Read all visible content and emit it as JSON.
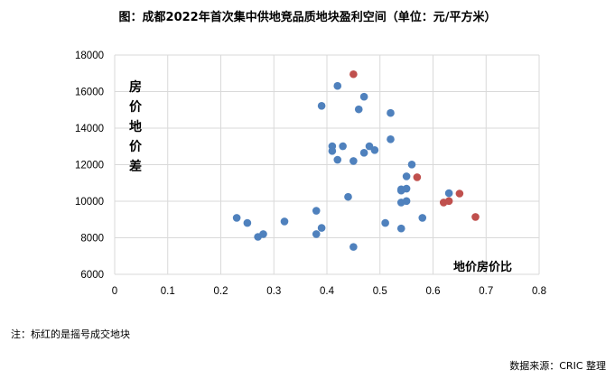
{
  "chart_data": {
    "type": "scatter",
    "title": "图：成都2022年首次集中供地竞品质地块盈利空间（单位：元/平方米）",
    "xlabel": "地价房价比",
    "ylabel": "房价地价差",
    "xlim": [
      0,
      0.8
    ],
    "ylim": [
      6000,
      18000
    ],
    "xticks": [
      "0",
      "0.1",
      "0.2",
      "0.3",
      "0.4",
      "0.5",
      "0.6",
      "0.7",
      "0.8"
    ],
    "yticks": [
      "6000",
      "8000",
      "10000",
      "12000",
      "14000",
      "16000",
      "18000"
    ],
    "grid": true,
    "colors": {
      "normal": "#4f81bd",
      "lottery": "#c0504d"
    },
    "points": [
      {
        "x": 0.45,
        "y": 16950,
        "lottery": true
      },
      {
        "x": 0.42,
        "y": 16310,
        "lottery": false
      },
      {
        "x": 0.47,
        "y": 15720,
        "lottery": false
      },
      {
        "x": 0.39,
        "y": 15220,
        "lottery": false
      },
      {
        "x": 0.46,
        "y": 15030,
        "lottery": false
      },
      {
        "x": 0.52,
        "y": 14830,
        "lottery": false
      },
      {
        "x": 0.52,
        "y": 13390,
        "lottery": false
      },
      {
        "x": 0.41,
        "y": 13010,
        "lottery": false
      },
      {
        "x": 0.41,
        "y": 12750,
        "lottery": false
      },
      {
        "x": 0.43,
        "y": 13010,
        "lottery": false
      },
      {
        "x": 0.48,
        "y": 13010,
        "lottery": false
      },
      {
        "x": 0.49,
        "y": 12800,
        "lottery": false
      },
      {
        "x": 0.47,
        "y": 12650,
        "lottery": false
      },
      {
        "x": 0.42,
        "y": 12270,
        "lottery": false
      },
      {
        "x": 0.45,
        "y": 12200,
        "lottery": false
      },
      {
        "x": 0.56,
        "y": 12010,
        "lottery": false
      },
      {
        "x": 0.55,
        "y": 11360,
        "lottery": false
      },
      {
        "x": 0.57,
        "y": 11310,
        "lottery": true
      },
      {
        "x": 0.54,
        "y": 10580,
        "lottery": false
      },
      {
        "x": 0.54,
        "y": 10650,
        "lottery": false
      },
      {
        "x": 0.55,
        "y": 10690,
        "lottery": false
      },
      {
        "x": 0.44,
        "y": 10240,
        "lottery": false
      },
      {
        "x": 0.63,
        "y": 10440,
        "lottery": false
      },
      {
        "x": 0.65,
        "y": 10420,
        "lottery": true
      },
      {
        "x": 0.54,
        "y": 9930,
        "lottery": false
      },
      {
        "x": 0.55,
        "y": 10010,
        "lottery": false
      },
      {
        "x": 0.62,
        "y": 9930,
        "lottery": true
      },
      {
        "x": 0.63,
        "y": 10010,
        "lottery": true
      },
      {
        "x": 0.23,
        "y": 9090,
        "lottery": false
      },
      {
        "x": 0.25,
        "y": 8810,
        "lottery": false
      },
      {
        "x": 0.32,
        "y": 8890,
        "lottery": false
      },
      {
        "x": 0.38,
        "y": 9480,
        "lottery": false
      },
      {
        "x": 0.39,
        "y": 8540,
        "lottery": false
      },
      {
        "x": 0.38,
        "y": 8200,
        "lottery": false
      },
      {
        "x": 0.27,
        "y": 8050,
        "lottery": false
      },
      {
        "x": 0.28,
        "y": 8200,
        "lottery": false
      },
      {
        "x": 0.51,
        "y": 8810,
        "lottery": false
      },
      {
        "x": 0.54,
        "y": 8510,
        "lottery": false
      },
      {
        "x": 0.58,
        "y": 9090,
        "lottery": false
      },
      {
        "x": 0.68,
        "y": 9140,
        "lottery": true
      },
      {
        "x": 0.45,
        "y": 7500,
        "lottery": false
      }
    ]
  },
  "note": "注：标红的是摇号成交地块",
  "source": "数据来源：CRIC 整理"
}
